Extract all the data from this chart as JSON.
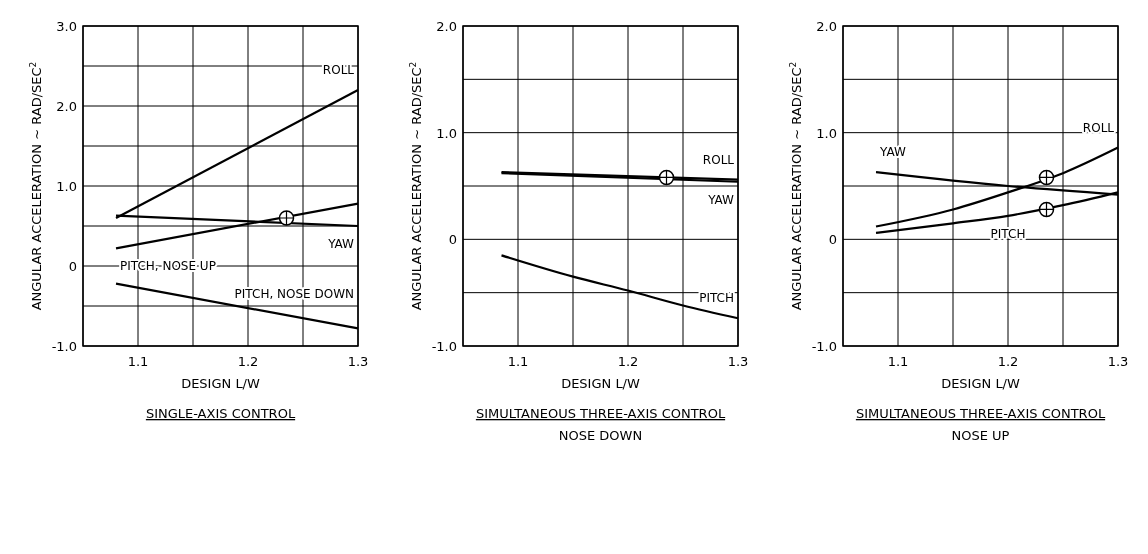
{
  "chart_data": [
    {
      "type": "line",
      "title": "SINGLE-AXIS CONTROL",
      "xlabel": "DESIGN L/W",
      "ylabel": "ANGULAR ACCELERATION ~ RAD/SEC$^{2}$",
      "xlim": [
        1.05,
        1.3
      ],
      "xticks": [
        {
          "value": 1.05,
          "label": null
        },
        1.1,
        {
          "value": 1.15,
          "label": null
        },
        1.2,
        {
          "value": 1.25,
          "label": null
        },
        1.3
      ],
      "ylim": [
        -1,
        3
      ],
      "yticks": [
        {
          "value": -1,
          "label": "-1.0"
        },
        {
          "value": -0.5,
          "label": null
        },
        {
          "value": 0,
          "label": "0"
        },
        {
          "value": 0.5,
          "label": null
        },
        {
          "value": 1,
          "label": "1.0"
        },
        {
          "value": 1.5,
          "label": null
        },
        {
          "value": 2,
          "label": "2.0"
        },
        {
          "value": 2.5,
          "label": null
        },
        {
          "value": 3,
          "label": "3.0"
        }
      ],
      "grid": true,
      "series": [
        {
          "name": "ROLL",
          "color": "#000000",
          "x": [
            1.08,
            1.3
          ],
          "values": [
            0.6,
            2.2
          ]
        },
        {
          "name": "PITCH, NOSE UP",
          "color": "#000000",
          "x": [
            1.08,
            1.3
          ],
          "values": [
            0.22,
            0.78
          ]
        },
        {
          "name": "YAW",
          "color": "#000000",
          "x": [
            1.08,
            1.3
          ],
          "values": [
            0.63,
            0.5
          ]
        },
        {
          "name": "PITCH, NOSE DOWN",
          "color": "#000000",
          "x": [
            1.08,
            1.3
          ],
          "values": [
            -0.22,
            -0.78
          ]
        },
        {
          "type": "scatter",
          "marker": "circle",
          "color": "#000000",
          "x": [
            1.235
          ],
          "values": [
            0.6
          ]
        }
      ]
    },
    {
      "type": "line",
      "title": "SIMULTANEOUS THREE-AXIS CONTROL",
      "subtitle": "NOSE DOWN",
      "xlabel": "DESIGN L/W",
      "ylabel": "ANGULAR ACCELERATION ~ RAD/SEC$^{2}$",
      "xlim": [
        1.05,
        1.3
      ],
      "xticks": [
        {
          "value": 1.05,
          "label": null
        },
        1.1,
        {
          "value": 1.15,
          "label": null
        },
        1.2,
        {
          "value": 1.25,
          "label": null
        },
        1.3
      ],
      "ylim": [
        -1,
        2
      ],
      "yticks": [
        {
          "value": -1,
          "label": "-1.0"
        },
        {
          "value": -0.5,
          "label": null
        },
        {
          "value": 0,
          "label": "0"
        },
        {
          "value": 0.5,
          "label": null
        },
        {
          "value": 1,
          "label": "1.0"
        },
        {
          "value": 1.5,
          "label": null
        },
        {
          "value": 2,
          "label": "2.0"
        }
      ],
      "grid": true,
      "series": [
        {
          "name": "ROLL",
          "color": "#000000",
          "x": [
            1.085,
            1.3
          ],
          "values": [
            0.63,
            0.56
          ]
        },
        {
          "name": "YAW",
          "color": "#000000",
          "x": [
            1.085,
            1.3
          ],
          "values": [
            0.62,
            0.54
          ]
        },
        {
          "name": "PITCH",
          "color": "#000000",
          "x": [
            1.085,
            1.15,
            1.2,
            1.25,
            1.3
          ],
          "values": [
            -0.15,
            -0.35,
            -0.48,
            -0.62,
            -0.74
          ]
        },
        {
          "type": "scatter",
          "marker": "circle",
          "color": "#000000",
          "x": [
            1.235
          ],
          "values": [
            0.58
          ]
        }
      ]
    },
    {
      "type": "line",
      "title": "SIMULTANEOUS THREE-AXIS CONTROL",
      "subtitle": "NOSE UP",
      "xlabel": "DESIGN L/W",
      "ylabel": "ANGULAR ACCELERATION ~ RAD/SEC$^{2}$",
      "xlim": [
        1.05,
        1.3
      ],
      "xticks": [
        {
          "value": 1.05,
          "label": null
        },
        1.1,
        {
          "value": 1.15,
          "label": null
        },
        1.2,
        {
          "value": 1.25,
          "label": null
        },
        1.3
      ],
      "ylim": [
        -1,
        2
      ],
      "yticks": [
        {
          "value": -1,
          "label": "-1.0"
        },
        {
          "value": -0.5,
          "label": null
        },
        {
          "value": 0,
          "label": "0"
        },
        {
          "value": 0.5,
          "label": null
        },
        {
          "value": 1,
          "label": "1.0"
        },
        {
          "value": 1.5,
          "label": null
        },
        {
          "value": 2,
          "label": "2.0"
        }
      ],
      "grid": true,
      "series": [
        {
          "name": "YAW",
          "color": "#000000",
          "x": [
            1.08,
            1.2,
            1.3
          ],
          "values": [
            0.63,
            0.5,
            0.42
          ]
        },
        {
          "name": "ROLL",
          "color": "#000000",
          "x": [
            1.08,
            1.15,
            1.2,
            1.25,
            1.3
          ],
          "values": [
            0.12,
            0.28,
            0.44,
            0.62,
            0.86
          ]
        },
        {
          "name": "PITCH",
          "color": "#000000",
          "x": [
            1.08,
            1.15,
            1.2,
            1.25,
            1.3
          ],
          "values": [
            0.06,
            0.15,
            0.22,
            0.32,
            0.44
          ]
        },
        {
          "type": "scatter",
          "marker": "circle",
          "color": "#000000",
          "x": [
            1.235,
            1.235
          ],
          "values": [
            0.58,
            0.28
          ]
        }
      ]
    }
  ]
}
